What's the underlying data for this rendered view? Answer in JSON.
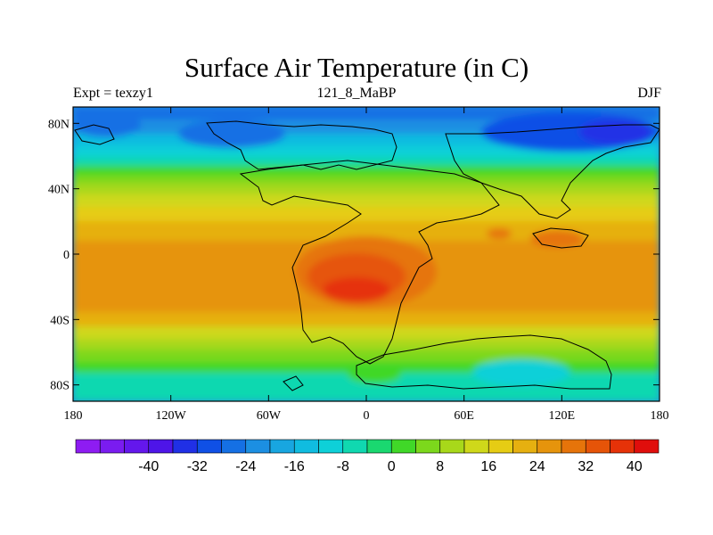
{
  "title": "Surface Air Temperature (in C)",
  "subtitle_left": "Expt = texzy1",
  "subtitle_center": "121_8_MaBP",
  "subtitle_right": "DJF",
  "map": {
    "projection": "equirectangular",
    "lon_range": [
      -180,
      180
    ],
    "lat_range": [
      -90,
      90
    ],
    "lon_ticks": [
      {
        "value": -180,
        "label": "180"
      },
      {
        "value": -120,
        "label": "120W"
      },
      {
        "value": -60,
        "label": "60W"
      },
      {
        "value": 0,
        "label": "0"
      },
      {
        "value": 60,
        "label": "60E"
      },
      {
        "value": 120,
        "label": "120E"
      },
      {
        "value": 180,
        "label": "180"
      }
    ],
    "lat_ticks": [
      {
        "value": 80,
        "label": "80N"
      },
      {
        "value": 40,
        "label": "40N"
      },
      {
        "value": 0,
        "label": "0"
      },
      {
        "value": -40,
        "label": "40S"
      },
      {
        "value": -80,
        "label": "80S"
      }
    ]
  },
  "colorbar": {
    "colors": [
      "#8e1cf2",
      "#7a1cf0",
      "#6417ec",
      "#4e15e8",
      "#2030e6",
      "#0f50e6",
      "#1570e4",
      "#1c8fe2",
      "#18a6e0",
      "#10bce0",
      "#0ed0d8",
      "#10d8b0",
      "#1ad870",
      "#40d828",
      "#7cd81c",
      "#a8d81a",
      "#cfd81a",
      "#e6cc14",
      "#e6b010",
      "#e6940c",
      "#e6740a",
      "#e65408",
      "#e63208",
      "#e00e0c"
    ],
    "labels": [
      "-40",
      "-32",
      "-24",
      "-16",
      "-8",
      "0",
      "8",
      "16",
      "24",
      "32",
      "40"
    ]
  }
}
